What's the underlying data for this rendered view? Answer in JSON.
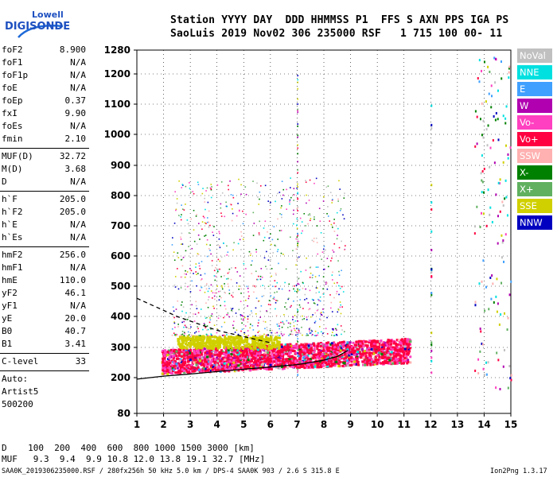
{
  "logo": {
    "line1": "Lowell",
    "line2": "DIGISONDE"
  },
  "header": {
    "row1": "Station YYYY DAY  DDD HHMMSS P1  FFS S AXN PPS IGA PS",
    "row2": "SaoLuis 2019 Nov02 306 235000 RSF   1 715 100 00- 11"
  },
  "params_group1": [
    {
      "name": "foF2",
      "value": "8.900"
    },
    {
      "name": "foF1",
      "value": "N/A"
    },
    {
      "name": "foF1p",
      "value": "N/A"
    },
    {
      "name": "foE",
      "value": "N/A"
    },
    {
      "name": "foEp",
      "value": "0.37"
    },
    {
      "name": "fxI",
      "value": "9.90"
    },
    {
      "name": "foEs",
      "value": "N/A"
    },
    {
      "name": "fmin",
      "value": "2.10"
    }
  ],
  "params_group2": [
    {
      "name": "MUF(D)",
      "value": "32.72"
    },
    {
      "name": "M(D)",
      "value": "3.68"
    },
    {
      "name": "D",
      "value": "N/A"
    }
  ],
  "params_group3": [
    {
      "name": "h`F",
      "value": "205.0"
    },
    {
      "name": "h`F2",
      "value": "205.0"
    },
    {
      "name": "h`E",
      "value": "N/A"
    },
    {
      "name": "h`Es",
      "value": "N/A"
    }
  ],
  "params_group4": [
    {
      "name": "hmF2",
      "value": "256.0"
    },
    {
      "name": "hmF1",
      "value": "N/A"
    },
    {
      "name": "hmE",
      "value": "110.0"
    },
    {
      "name": "yF2",
      "value": "46.1"
    },
    {
      "name": "yF1",
      "value": "N/A"
    },
    {
      "name": "yE",
      "value": "20.0"
    },
    {
      "name": "B0",
      "value": "40.7"
    },
    {
      "name": "B1",
      "value": "3.41"
    }
  ],
  "clevel": {
    "name": "C-level",
    "value": "33"
  },
  "auto": {
    "line1": "Auto:",
    "line2": "Artist5",
    "line3": "500200"
  },
  "legend": [
    {
      "label": "NoVal",
      "color": "#c0c0c0"
    },
    {
      "label": "NNE",
      "color": "#00e0e0"
    },
    {
      "label": "E",
      "color": "#40a0ff"
    },
    {
      "label": "W",
      "color": "#b000b0"
    },
    {
      "label": "Vo-",
      "color": "#ff40c0"
    },
    {
      "label": "Vo+",
      "color": "#ff0040"
    },
    {
      "label": "SSW",
      "color": "#ffb0b0"
    },
    {
      "label": "X-",
      "color": "#008000"
    },
    {
      "label": "X+",
      "color": "#60b060"
    },
    {
      "label": "SSE",
      "color": "#d0d000"
    },
    {
      "label": "NNW",
      "color": "#0000c0"
    }
  ],
  "footer": {
    "d_row": "D    100  200  400  600  800 1000 1500 3000 [km]",
    "muf_row": "MUF   9.3  9.4  9.9 10.8 12.0 13.8 19.1 32.7 [MHz]",
    "file_info": "SAA0K_2019306235000.RSF / 280fx256h 50 kHz 5.0 km / DPS-4 SAA0K 903 / 2.6 S 315.8 E",
    "version": "Ion2Png 1.3.17"
  },
  "chart_data": {
    "type": "scatter",
    "x_ticks": [
      "1",
      "2",
      "3",
      "4",
      "5",
      "6",
      "7",
      "8",
      "9",
      "10",
      "11",
      "12",
      "13",
      "14",
      "15"
    ],
    "y_ticks": [
      "80",
      "200",
      "300",
      "400",
      "500",
      "600",
      "700",
      "800",
      "900",
      "1000",
      "1100",
      "1200",
      "1280"
    ],
    "xlim": [
      1,
      15
    ],
    "ylim": [
      80,
      1280
    ],
    "y_scale": "log-like",
    "grid": true,
    "curves": [
      {
        "name": "",
        "style": "dashed",
        "x": [
          1.0,
          1.5,
          2.0,
          2.5,
          3.0,
          3.5,
          4.0,
          4.5,
          5.0,
          5.5,
          6.0
        ],
        "y": [
          460,
          440,
          420,
          400,
          385,
          370,
          355,
          345,
          335,
          325,
          315
        ]
      },
      {
        "name": "",
        "style": "solid",
        "x": [
          1.0,
          2.0,
          3.0,
          4.0,
          5.0,
          6.0,
          7.0,
          7.5,
          8.0,
          8.5,
          8.9
        ],
        "y": [
          195,
          205,
          212,
          220,
          228,
          235,
          243,
          250,
          258,
          270,
          290
        ]
      }
    ]
  }
}
